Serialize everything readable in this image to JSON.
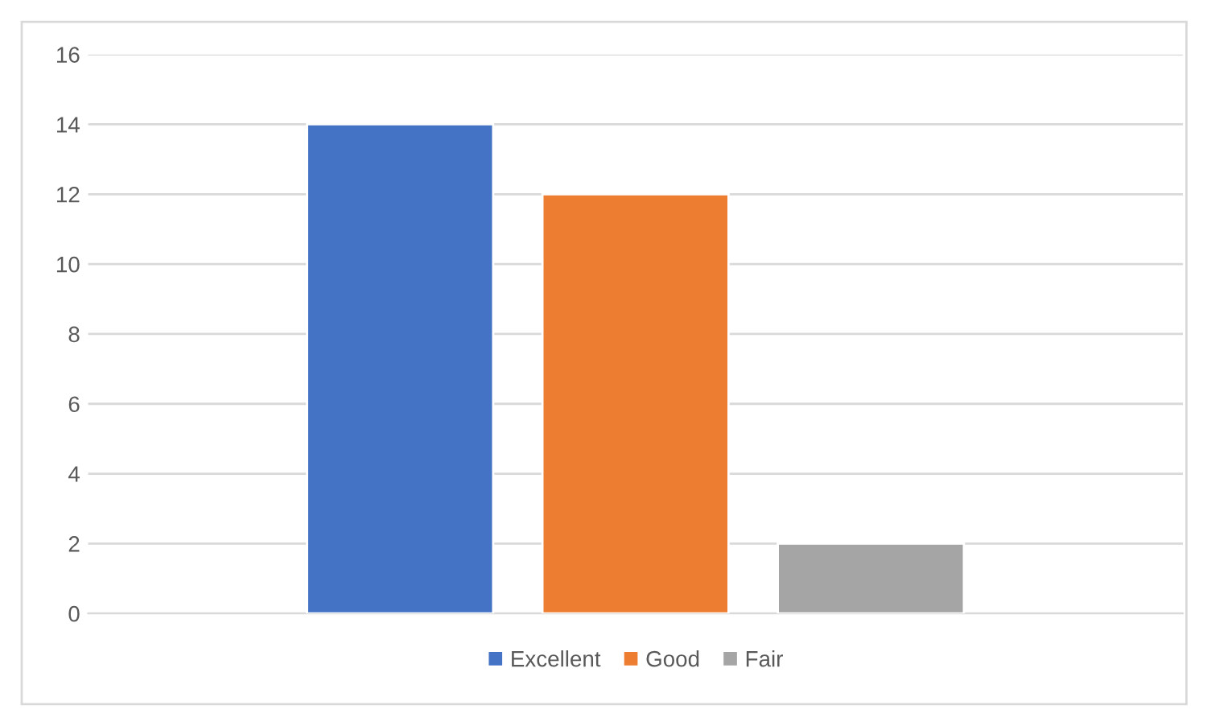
{
  "chart_data": {
    "type": "bar",
    "categories": [
      null
    ],
    "series": [
      {
        "name": "Excellent",
        "color": "#4472c4",
        "values": [
          14
        ]
      },
      {
        "name": "Good",
        "color": "#ed7d31",
        "values": [
          12
        ]
      },
      {
        "name": "Fair",
        "color": "#a5a5a5",
        "values": [
          2
        ]
      }
    ],
    "ylim": [
      0,
      16
    ],
    "yticks": [
      0,
      2,
      4,
      6,
      8,
      10,
      12,
      14,
      16
    ],
    "grid": "y",
    "legend": "bottom"
  }
}
